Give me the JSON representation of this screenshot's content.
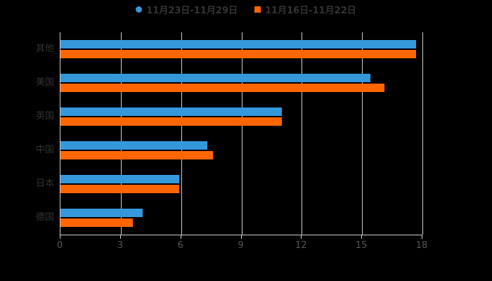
{
  "legend": {
    "items": [
      {
        "label": "11月23日-11月29日",
        "color": "#3498db",
        "marker": "circle"
      },
      {
        "label": "11月16日-11月22日",
        "color": "#ff6600",
        "marker": "square"
      }
    ]
  },
  "chart_data": {
    "type": "bar",
    "orientation": "horizontal",
    "title": "",
    "xlabel": "",
    "ylabel": "",
    "categories": [
      "其他",
      "美国",
      "英国",
      "中国",
      "日本",
      "德国"
    ],
    "series": [
      {
        "name": "11月23日-11月29日",
        "color": "#3498db",
        "values": [
          17.7,
          15.4,
          11.0,
          7.3,
          5.9,
          4.1
        ]
      },
      {
        "name": "11月16日-11月22日",
        "color": "#ff6600",
        "values": [
          17.7,
          16.1,
          11.0,
          7.6,
          5.9,
          3.6
        ]
      }
    ],
    "xlim": [
      0,
      18
    ],
    "xticks": [
      0,
      3,
      6,
      9,
      12,
      15,
      18
    ],
    "grid": true,
    "legend_position": "top",
    "background": "#000000"
  },
  "colors": {
    "axis_line": "#cccccc",
    "grid_line": "#cccccc",
    "tick_label": "#555555",
    "category_label": "#333333",
    "legend_label": "#333333"
  }
}
